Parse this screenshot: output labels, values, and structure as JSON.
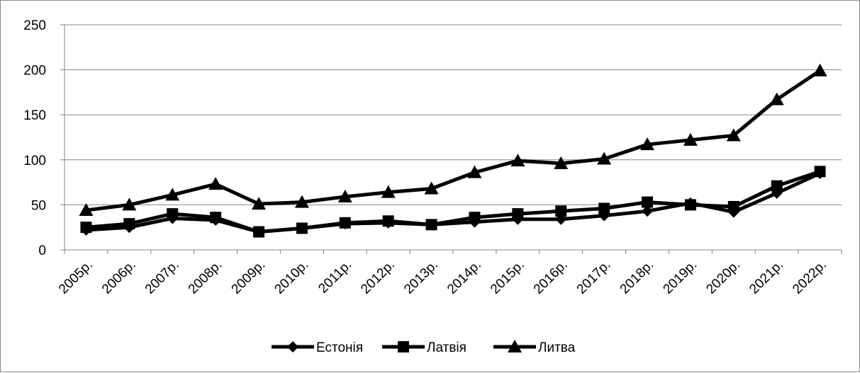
{
  "chart_data": {
    "type": "line",
    "title": "",
    "xlabel": "",
    "ylabel": "",
    "ylim": [
      0,
      250
    ],
    "yticks": [
      "0",
      "50",
      "100",
      "150",
      "200",
      "250"
    ],
    "grid": true,
    "legend_position": "bottom",
    "categories": [
      "2005р.",
      "2006р.",
      "2007р.",
      "2008р.",
      "2009р.",
      "2010р.",
      "2011р.",
      "2012р.",
      "2013р.",
      "2014р.",
      "2015р.",
      "2016р.",
      "2017р.",
      "2018р.",
      "2019р.",
      "2020р.",
      "2021р.",
      "2022р."
    ],
    "series": [
      {
        "name": "Естонія",
        "marker": "diamond",
        "color": "#000000",
        "values": [
          22,
          25,
          35,
          33,
          20,
          24,
          29,
          30,
          28,
          31,
          34,
          34,
          38,
          43,
          52,
          42,
          63,
          85
        ]
      },
      {
        "name": "Латвія",
        "marker": "square",
        "color": "#000000",
        "values": [
          25,
          29,
          40,
          36,
          20,
          24,
          30,
          32,
          28,
          36,
          40,
          43,
          46,
          53,
          50,
          48,
          71,
          87
        ]
      },
      {
        "name": "Литва",
        "marker": "triangle",
        "color": "#000000",
        "values": [
          44,
          50,
          61,
          73,
          51,
          53,
          59,
          64,
          68,
          86,
          99,
          96,
          101,
          117,
          122,
          127,
          167,
          199
        ]
      }
    ]
  }
}
